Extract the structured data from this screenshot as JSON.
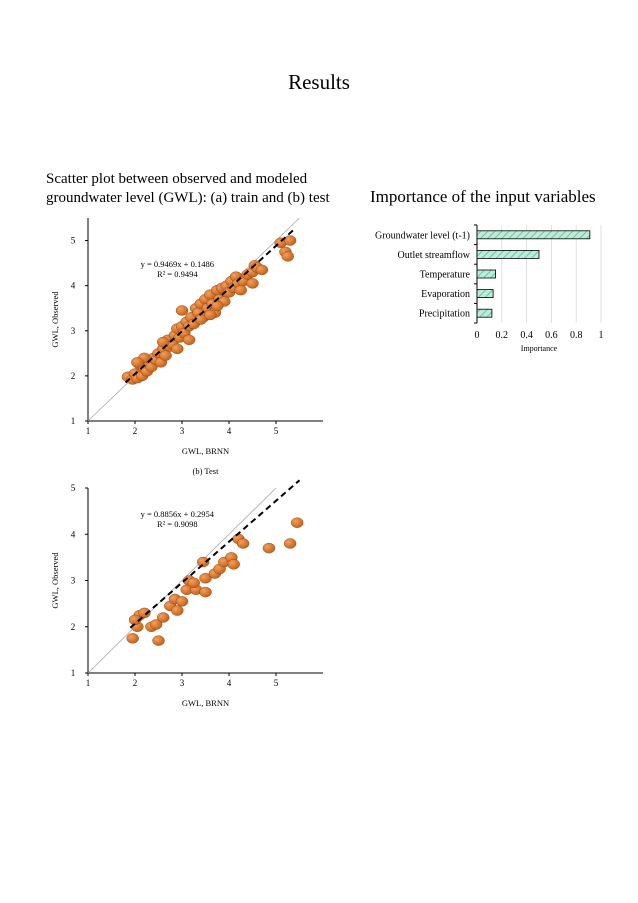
{
  "page": {
    "title": "Results",
    "left_heading_line1": "Scatter plot between observed and modeled",
    "left_heading_line2": "groundwater level  (GWL): (a) train and (b) test",
    "right_heading": "Importance of the input variables"
  },
  "colors": {
    "point_fill": "#c8631a",
    "point_highlight": "#f0a060",
    "bar_fill": "#b9ecd9",
    "bar_hatch": "#5fae8f",
    "identity_line": "#a8a8a8",
    "fit_line": "#000000"
  },
  "chart_data": [
    {
      "type": "scatter",
      "title": "",
      "xlabel": "GWL, BRNN",
      "ylabel": "GWL, Observed",
      "xlim": [
        1,
        6
      ],
      "ylim": [
        1,
        5.5
      ],
      "xticks": [
        1,
        2,
        3,
        4,
        5
      ],
      "yticks": [
        1,
        2,
        3,
        4,
        5
      ],
      "grid": false,
      "equation": "y = 0.9469x + 0.1486",
      "r2": "R² = 0.9494",
      "fit": {
        "slope": 0.9469,
        "intercept": 0.1486,
        "x_range": [
          1.8,
          5.4
        ]
      },
      "points": [
        [
          1.85,
          1.98
        ],
        [
          1.95,
          1.92
        ],
        [
          2.0,
          2.05
        ],
        [
          2.05,
          1.95
        ],
        [
          2.1,
          2.25
        ],
        [
          2.15,
          2.0
        ],
        [
          2.2,
          2.18
        ],
        [
          2.25,
          2.1
        ],
        [
          2.3,
          2.3
        ],
        [
          2.35,
          2.2
        ],
        [
          2.4,
          2.4
        ],
        [
          2.45,
          2.35
        ],
        [
          2.5,
          2.5
        ],
        [
          2.55,
          2.3
        ],
        [
          2.6,
          2.6
        ],
        [
          2.65,
          2.45
        ],
        [
          2.7,
          2.8
        ],
        [
          2.75,
          2.65
        ],
        [
          2.8,
          2.7
        ],
        [
          2.85,
          2.9
        ],
        [
          2.9,
          3.05
        ],
        [
          2.95,
          2.85
        ],
        [
          3.0,
          3.1
        ],
        [
          3.05,
          2.95
        ],
        [
          3.1,
          3.2
        ],
        [
          3.15,
          3.1
        ],
        [
          3.2,
          3.3
        ],
        [
          3.25,
          3.15
        ],
        [
          3.3,
          3.5
        ],
        [
          3.35,
          3.4
        ],
        [
          3.4,
          3.6
        ],
        [
          3.45,
          3.3
        ],
        [
          3.5,
          3.7
        ],
        [
          3.55,
          3.5
        ],
        [
          3.6,
          3.8
        ],
        [
          3.65,
          3.6
        ],
        [
          3.7,
          3.4
        ],
        [
          3.75,
          3.9
        ],
        [
          3.8,
          3.7
        ],
        [
          3.85,
          3.95
        ],
        [
          3.9,
          3.65
        ],
        [
          3.95,
          4.0
        ],
        [
          4.0,
          3.85
        ],
        [
          4.05,
          4.1
        ],
        [
          4.1,
          3.95
        ],
        [
          4.15,
          4.2
        ],
        [
          4.2,
          4.05
        ],
        [
          4.3,
          4.1
        ],
        [
          4.4,
          4.25
        ],
        [
          4.5,
          4.3
        ],
        [
          4.55,
          4.45
        ],
        [
          4.6,
          4.4
        ],
        [
          4.7,
          4.35
        ],
        [
          5.1,
          4.95
        ],
        [
          5.2,
          4.75
        ],
        [
          5.25,
          4.65
        ],
        [
          5.3,
          5.0
        ],
        [
          3.0,
          3.45
        ],
        [
          2.6,
          2.75
        ],
        [
          3.4,
          3.25
        ],
        [
          2.2,
          2.4
        ],
        [
          3.6,
          3.35
        ],
        [
          4.25,
          3.9
        ],
        [
          2.9,
          2.6
        ],
        [
          3.15,
          2.8
        ],
        [
          2.05,
          2.3
        ],
        [
          4.5,
          4.05
        ],
        [
          3.75,
          3.55
        ]
      ]
    },
    {
      "type": "scatter",
      "title": "(b) Test",
      "xlabel": "GWL, BRNN",
      "ylabel": "GWL, Observed",
      "xlim": [
        1,
        6
      ],
      "ylim": [
        1,
        5
      ],
      "xticks": [
        1,
        2,
        3,
        4,
        5
      ],
      "yticks": [
        1,
        2,
        3,
        4,
        5
      ],
      "grid": false,
      "equation": "y = 0.8856x + 0.2954",
      "r2": "R² = 0.9098",
      "fit": {
        "slope": 0.8856,
        "intercept": 0.2954,
        "x_range": [
          1.9,
          5.5
        ]
      },
      "points": [
        [
          1.95,
          1.75
        ],
        [
          2.05,
          2.0
        ],
        [
          2.1,
          2.25
        ],
        [
          2.2,
          2.3
        ],
        [
          2.35,
          2.0
        ],
        [
          2.45,
          2.05
        ],
        [
          2.5,
          1.7
        ],
        [
          2.6,
          2.2
        ],
        [
          2.75,
          2.45
        ],
        [
          2.85,
          2.6
        ],
        [
          2.9,
          2.35
        ],
        [
          3.0,
          2.55
        ],
        [
          3.1,
          2.8
        ],
        [
          3.15,
          3.0
        ],
        [
          3.3,
          2.8
        ],
        [
          3.5,
          2.75
        ],
        [
          3.45,
          3.4
        ],
        [
          3.5,
          3.05
        ],
        [
          3.7,
          3.15
        ],
        [
          3.8,
          3.25
        ],
        [
          3.9,
          3.4
        ],
        [
          4.05,
          3.5
        ],
        [
          4.1,
          3.35
        ],
        [
          4.2,
          3.9
        ],
        [
          4.3,
          3.8
        ],
        [
          4.85,
          3.7
        ],
        [
          5.3,
          3.8
        ],
        [
          5.45,
          4.25
        ],
        [
          3.25,
          2.95
        ],
        [
          2.0,
          2.15
        ]
      ]
    },
    {
      "type": "bar",
      "orientation": "horizontal",
      "title": "",
      "xlabel": "Importance",
      "ylabel": "",
      "xlim": [
        0,
        1
      ],
      "xticks": [
        0,
        0.2,
        0.4,
        0.6,
        0.8,
        1
      ],
      "xtick_labels": [
        "0",
        "0.2",
        "0.4",
        "0.6",
        "0.8",
        "1"
      ],
      "grid": "vertical",
      "categories": [
        "Groundwater level (t-1)",
        "Outlet streamflow",
        "Temperature",
        "Evaporation",
        "Precipitation"
      ],
      "values": [
        0.91,
        0.5,
        0.15,
        0.13,
        0.12
      ]
    }
  ]
}
